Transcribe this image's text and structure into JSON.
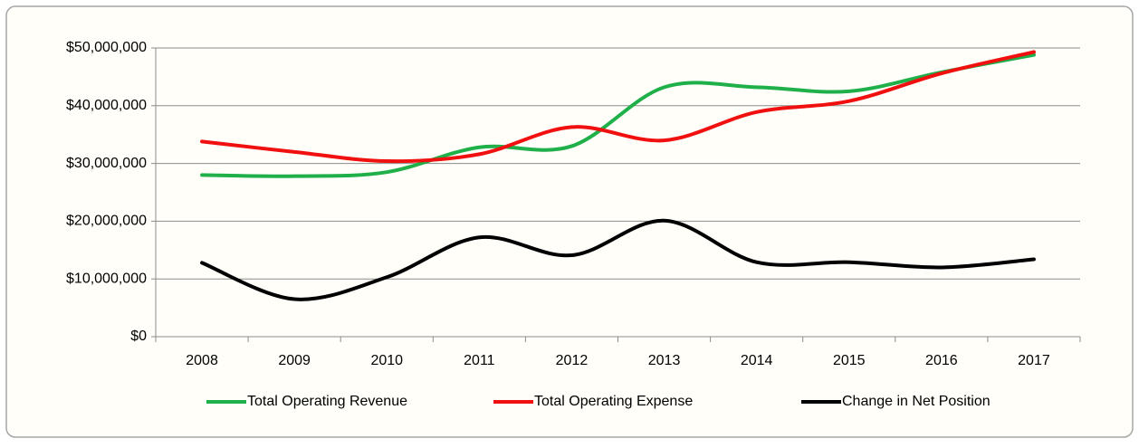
{
  "chart_data": {
    "type": "line",
    "categories": [
      "2008",
      "2009",
      "2010",
      "2011",
      "2012",
      "2013",
      "2014",
      "2015",
      "2016",
      "2017"
    ],
    "series": [
      {
        "name": "Total Operating Revenue",
        "color": "#1fb04a",
        "values": [
          28000000,
          27800000,
          28500000,
          32800000,
          33000000,
          43200000,
          43200000,
          42500000,
          45800000,
          48800000
        ]
      },
      {
        "name": "Total Operating Expense",
        "color": "#f01010",
        "values": [
          33800000,
          32000000,
          30400000,
          31600000,
          36300000,
          34000000,
          38900000,
          40800000,
          45600000,
          49300000
        ]
      },
      {
        "name": "Change in Net Position",
        "color": "#000000",
        "values": [
          12800000,
          6500000,
          10300000,
          17200000,
          14100000,
          20100000,
          12900000,
          12900000,
          12000000,
          13400000
        ]
      }
    ],
    "ylim": [
      0,
      50000000
    ],
    "yticks": [
      {
        "value": 0,
        "label": "$0"
      },
      {
        "value": 10000000,
        "label": "$10,000,000"
      },
      {
        "value": 20000000,
        "label": "$20,000,000"
      },
      {
        "value": 30000000,
        "label": "$30,000,000"
      },
      {
        "value": 40000000,
        "label": "$40,000,000"
      },
      {
        "value": 50000000,
        "label": "$50,000,000"
      }
    ],
    "grid": true,
    "smooth": true,
    "legend": "bottom"
  }
}
